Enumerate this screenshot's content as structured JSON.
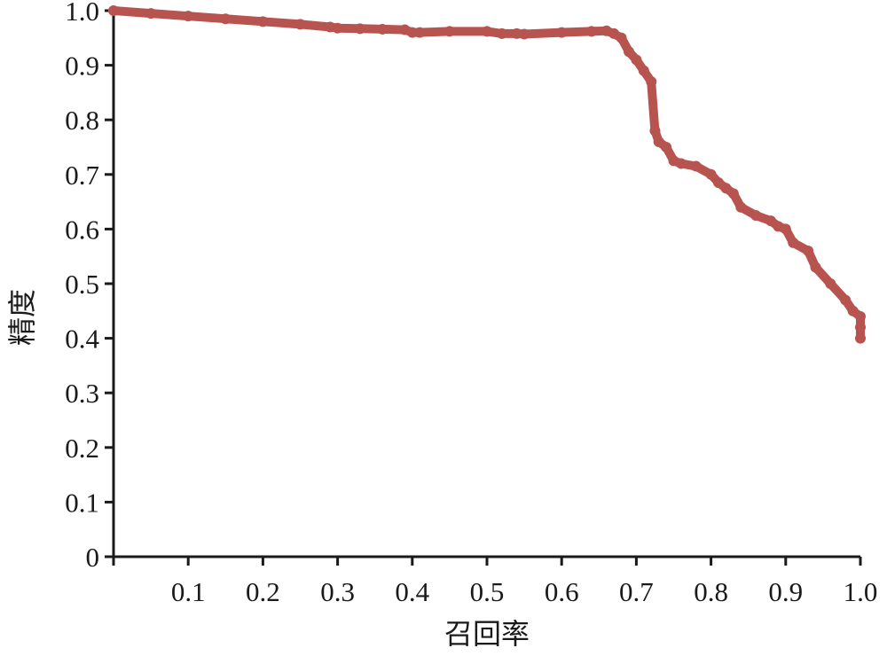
{
  "chart_data": {
    "type": "line",
    "title": "",
    "xlabel": "召回率",
    "ylabel": "精度",
    "xlim": [
      0,
      1.0
    ],
    "ylim": [
      0,
      1.0
    ],
    "grid": false,
    "legend": "none",
    "x_ticks": [
      {
        "value": 0.1,
        "label": "0.1"
      },
      {
        "value": 0.2,
        "label": "0.2"
      },
      {
        "value": 0.3,
        "label": "0.3"
      },
      {
        "value": 0.4,
        "label": "0.4"
      },
      {
        "value": 0.5,
        "label": "0.5"
      },
      {
        "value": 0.6,
        "label": "0.6"
      },
      {
        "value": 0.7,
        "label": "0.7"
      },
      {
        "value": 0.8,
        "label": "0.8"
      },
      {
        "value": 0.9,
        "label": "0.9"
      },
      {
        "value": 1.0,
        "label": "1.0"
      }
    ],
    "y_ticks": [
      {
        "value": 0,
        "label": "0"
      },
      {
        "value": 0.1,
        "label": "0.1"
      },
      {
        "value": 0.2,
        "label": "0.2"
      },
      {
        "value": 0.3,
        "label": "0.3"
      },
      {
        "value": 0.4,
        "label": "0.4"
      },
      {
        "value": 0.5,
        "label": "0.5"
      },
      {
        "value": 0.6,
        "label": "0.6"
      },
      {
        "value": 0.7,
        "label": "0.7"
      },
      {
        "value": 0.8,
        "label": "0.8"
      },
      {
        "value": 0.9,
        "label": "0.9"
      },
      {
        "value": 1.0,
        "label": "1.0"
      }
    ],
    "series": [
      {
        "color": "#b85450",
        "x": [
          0.0,
          0.05,
          0.1,
          0.15,
          0.2,
          0.25,
          0.29,
          0.3,
          0.33,
          0.36,
          0.39,
          0.4,
          0.41,
          0.45,
          0.5,
          0.52,
          0.54,
          0.55,
          0.6,
          0.64,
          0.66,
          0.67,
          0.68,
          0.69,
          0.7,
          0.71,
          0.72,
          0.725,
          0.73,
          0.74,
          0.75,
          0.76,
          0.78,
          0.8,
          0.81,
          0.82,
          0.83,
          0.84,
          0.86,
          0.88,
          0.89,
          0.9,
          0.91,
          0.93,
          0.94,
          0.96,
          0.98,
          0.99,
          1.0,
          1.0,
          1.0
        ],
        "y": [
          1.0,
          0.995,
          0.99,
          0.985,
          0.98,
          0.975,
          0.97,
          0.968,
          0.967,
          0.966,
          0.965,
          0.96,
          0.96,
          0.962,
          0.962,
          0.958,
          0.958,
          0.957,
          0.96,
          0.962,
          0.963,
          0.958,
          0.95,
          0.925,
          0.91,
          0.89,
          0.87,
          0.78,
          0.76,
          0.75,
          0.725,
          0.72,
          0.715,
          0.7,
          0.685,
          0.675,
          0.665,
          0.64,
          0.625,
          0.615,
          0.605,
          0.6,
          0.575,
          0.56,
          0.53,
          0.5,
          0.47,
          0.45,
          0.44,
          0.42,
          0.4
        ]
      }
    ]
  }
}
